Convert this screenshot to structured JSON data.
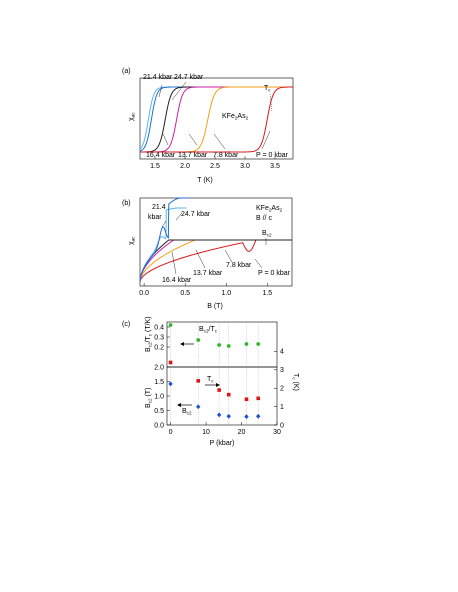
{
  "chart_data": [
    {
      "panel": "(a)",
      "type": "line",
      "material": [
        "KFe",
        "2",
        "As",
        "2"
      ],
      "xlabel": "T (K)",
      "ylabel": [
        "χ",
        "ac"
      ],
      "xlim": [
        1.25,
        3.8
      ],
      "xticks": [
        1.5,
        2.0,
        2.5,
        3.0,
        3.5
      ],
      "tc_label": [
        "T",
        "c"
      ],
      "series": [
        {
          "name": "21.4 kbar",
          "color": "#5ab4f0",
          "tc": 1.39,
          "w": 0.045
        },
        {
          "name": "24.7 kbar",
          "color": "#1f6fd1",
          "tc": 1.44,
          "w": 0.045
        },
        {
          "name": "16.4 kbar",
          "color": "#222222",
          "tc": 1.67,
          "w": 0.05
        },
        {
          "name": "13.7 kbar",
          "color": "#cc1faa",
          "tc": 1.86,
          "w": 0.05
        },
        {
          "name": "7.8 kbar",
          "color": "#f2a21a",
          "tc": 2.38,
          "w": 0.055
        },
        {
          "name": "P = 0 kbar",
          "color": "#d7191c",
          "tc": 3.37,
          "w": 0.05
        }
      ],
      "labels": [
        "21.4 kbar",
        "24.7 kbar",
        "16.4 kbar",
        "13.7 kbar",
        "7.8 kbar",
        "P = 0 kbar"
      ]
    },
    {
      "panel": "(b)",
      "type": "line",
      "material": [
        "KFe",
        "2",
        "As",
        "2"
      ],
      "field_dir": "B // c",
      "xlabel": "B (T)",
      "ylabel": [
        "χ",
        "ac"
      ],
      "xlim": [
        -0.05,
        1.8
      ],
      "xticks": [
        0.0,
        0.5,
        1.0,
        1.5
      ],
      "bc2_label": [
        "B",
        "c2"
      ],
      "labels": [
        "21.4",
        "kbar",
        "24.7 kbar",
        "16.4 kbar",
        "13.7 kbar",
        "7.8 kbar",
        "P = 0 kbar"
      ],
      "series": [
        {
          "name": "P = 0 kbar",
          "color": "#d7191c",
          "bc2": 1.36
        },
        {
          "name": "7.8 kbar",
          "color": "#f2a21a",
          "bc2": 0.62
        },
        {
          "name": "13.7 kbar",
          "color": "#cc1faa",
          "bc2": 0.36
        },
        {
          "name": "16.4 kbar",
          "color": "#222222",
          "bc2": 0.3
        },
        {
          "name": "21.4 kbar",
          "color": "#5ab4f0",
          "bc2": 0.27
        },
        {
          "name": "24.7 kbar",
          "color": "#1f6fd1",
          "bc2": 0.3
        }
      ]
    },
    {
      "panel": "(c)",
      "type": "scatter",
      "xlabel": "P (kbar)",
      "xlim": [
        -1,
        30
      ],
      "xticks": [
        0,
        10,
        20,
        30
      ],
      "ylabel_bc2": [
        "B",
        "c2",
        " (T)"
      ],
      "ylabel_ratio": [
        "B",
        "c2",
        "/T",
        "c",
        " (T/K)"
      ],
      "ylabel_tc": [
        "T",
        "c",
        " (K)"
      ],
      "ratio_axis": {
        "ylim": [
          0.0,
          0.45
        ],
        "ticks": [
          "0.2",
          "0.3",
          "0.4"
        ]
      },
      "bc2_axis": {
        "ylim": [
          0.0,
          2.0
        ],
        "ticks": [
          "0.0",
          "0.5",
          "1.0",
          "1.5",
          "2.0"
        ]
      },
      "tc_axis": {
        "ylim": [
          0,
          4.5
        ],
        "ticks": [
          "0",
          "1",
          "2",
          "3",
          "4"
        ]
      },
      "series": [
        {
          "name": "B_c2/T_c",
          "color": "#2db82d",
          "marker": "circle",
          "x": [
            0,
            7.8,
            13.7,
            16.4,
            21.4,
            24.7
          ],
          "y": [
            0.42,
            0.27,
            0.22,
            0.21,
            0.23,
            0.23
          ]
        },
        {
          "name": "T_c",
          "color": "#e01414",
          "marker": "square",
          "x": [
            0,
            7.8,
            13.7,
            16.4,
            21.4,
            24.7
          ],
          "y": [
            3.4,
            2.4,
            1.9,
            1.65,
            1.4,
            1.45
          ]
        },
        {
          "name": "B_c2",
          "color": "#1a4fd6",
          "marker": "diamond",
          "x": [
            0,
            7.8,
            13.7,
            16.4,
            21.4,
            24.7
          ],
          "y": [
            1.42,
            0.63,
            0.35,
            0.3,
            0.29,
            0.3
          ]
        }
      ],
      "labels": {
        "ratio": [
          "B",
          "c2",
          "/T",
          "c"
        ],
        "tc": [
          "T",
          "c"
        ],
        "bc2": [
          "B",
          "c2"
        ]
      }
    }
  ]
}
